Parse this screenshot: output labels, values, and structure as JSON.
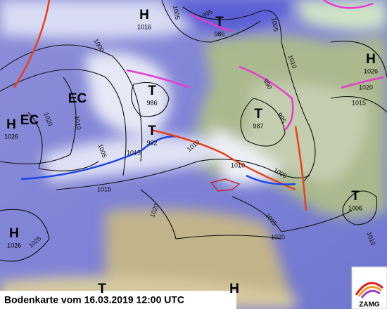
{
  "title": "Bodenkarte vom 16.03.2019 12:00 UTC",
  "logo": "ZAMG",
  "model_labels": [
    "EC",
    "EC"
  ],
  "pressure_centers": [
    {
      "symbol": "H",
      "value": 1016
    },
    {
      "symbol": "T",
      "value": 986
    },
    {
      "symbol": "H",
      "value": 1026
    },
    {
      "symbol": "T",
      "value": 986
    },
    {
      "symbol": "H",
      "value": 1026
    },
    {
      "symbol": "T",
      "value": 987
    },
    {
      "symbol": "T",
      "value": 982
    },
    {
      "symbol": "T",
      "value": 1006
    },
    {
      "symbol": "H",
      "value": 1026
    },
    {
      "symbol": "T"
    },
    {
      "symbol": "H"
    }
  ],
  "isobar_labels": [
    1005,
    995,
    1005,
    1000,
    1010,
    1020,
    1015,
    990,
    995,
    1020,
    1010,
    1005,
    1015,
    1010,
    1010,
    1005,
    1015,
    1020,
    1015,
    1020,
    1025,
    1010
  ]
}
